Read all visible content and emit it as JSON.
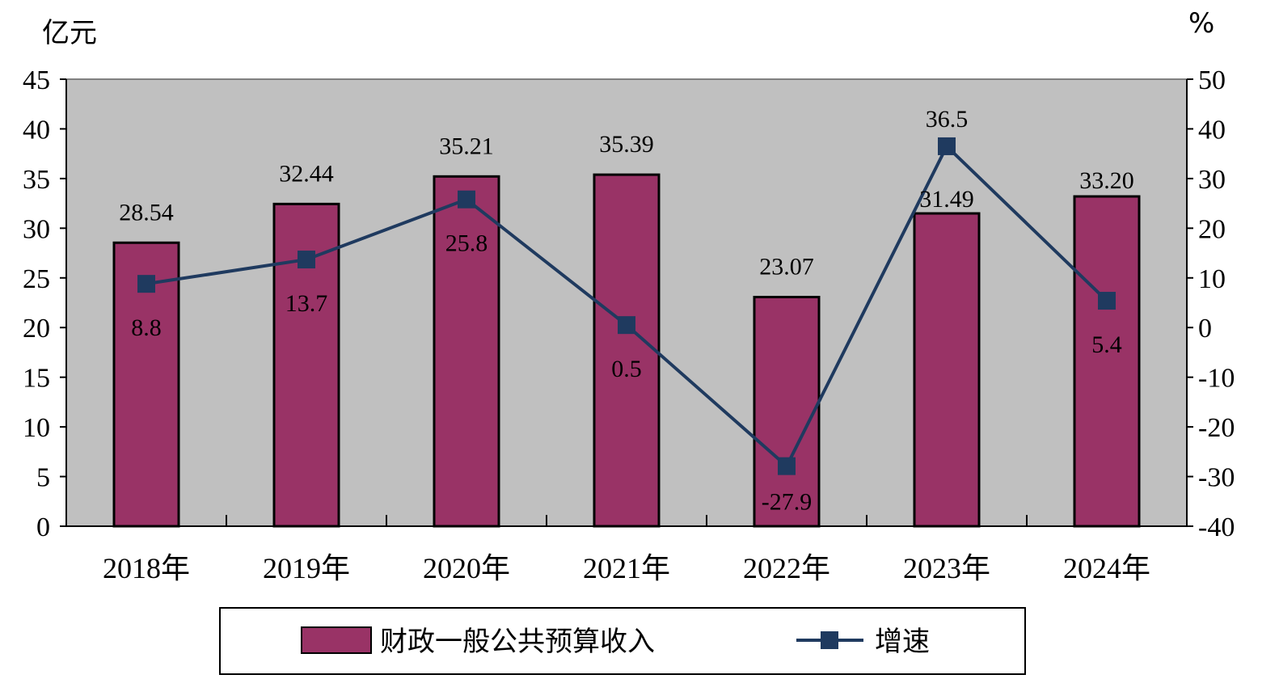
{
  "chart_data": {
    "type": "bar",
    "categories": [
      "2018年",
      "2019年",
      "2020年",
      "2021年",
      "2022年",
      "2023年",
      "2024年"
    ],
    "series": [
      {
        "name": "财政一般公共预算收入",
        "type": "bar",
        "axis": "left",
        "values": [
          28.54,
          32.44,
          35.21,
          35.39,
          23.07,
          31.49,
          33.2
        ],
        "labels": [
          "28.54",
          "32.44",
          "35.21",
          "35.39",
          "23.07",
          "31.49",
          "33.20"
        ],
        "color": "#993366"
      },
      {
        "name": "增速",
        "type": "line",
        "axis": "right",
        "values": [
          8.8,
          13.7,
          25.8,
          0.5,
          -27.9,
          36.5,
          5.4
        ],
        "labels": [
          "8.8",
          "13.7",
          "25.8",
          "0.5",
          "-27.9",
          "36.5",
          "5.4"
        ],
        "color": "#1f3a5f"
      }
    ],
    "y_left": {
      "unit": "亿元",
      "min": 0,
      "max": 45,
      "ticks": [
        "0",
        "5",
        "10",
        "15",
        "20",
        "25",
        "30",
        "35",
        "40",
        "45"
      ]
    },
    "y_right": {
      "unit": "%",
      "min": -40,
      "max": 50,
      "ticks": [
        "-40",
        "-30",
        "-20",
        "-10",
        "0",
        "10",
        "20",
        "30",
        "40",
        "50"
      ]
    },
    "grid": false,
    "plot_background": "#c0c0c0",
    "legend": {
      "position": "bottom"
    }
  }
}
